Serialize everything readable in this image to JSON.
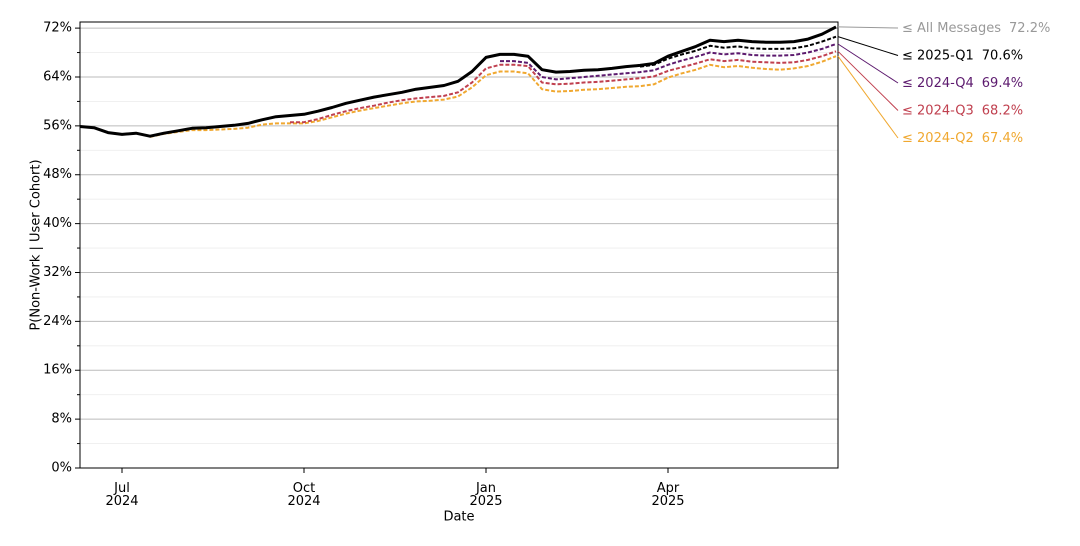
{
  "chart_data": {
    "type": "line",
    "x_label": "Date",
    "y_label": "P(Non-Work | User Cohort)",
    "categories": [
      null,
      null,
      null,
      "Jul\n2024",
      null,
      null,
      null,
      null,
      null,
      null,
      null,
      null,
      null,
      null,
      null,
      null,
      "Oct\n2024",
      null,
      null,
      null,
      null,
      null,
      null,
      null,
      null,
      null,
      null,
      null,
      null,
      "Jan\n2025",
      null,
      null,
      null,
      null,
      null,
      null,
      null,
      null,
      null,
      null,
      null,
      null,
      "Apr\n2025",
      null,
      null,
      null,
      null,
      null,
      null,
      null,
      null,
      null,
      null,
      null,
      null
    ],
    "ylim": [
      0,
      73
    ],
    "yticks": [
      {
        "value": 0,
        "label": "0%"
      },
      {
        "value": 8,
        "label": "8%"
      },
      {
        "value": 16,
        "label": "16%"
      },
      {
        "value": 24,
        "label": "24%"
      },
      {
        "value": 32,
        "label": "32%"
      },
      {
        "value": 40,
        "label": "40%"
      },
      {
        "value": 48,
        "label": "48%"
      },
      {
        "value": 56,
        "label": "56%"
      },
      {
        "value": 64,
        "label": "64%"
      },
      {
        "value": 72,
        "label": "72%"
      }
    ],
    "yminorticks": [
      4,
      12,
      20,
      28,
      36,
      44,
      52,
      60,
      68
    ],
    "grid": true,
    "series": [
      {
        "name": "≤ All Messages",
        "color": "#000000",
        "label_color": "#999999",
        "dash": false,
        "values": [
          55.9,
          55.7,
          54.9,
          54.6,
          54.8,
          54.3,
          54.8,
          55.2,
          55.6,
          55.7,
          55.9,
          56.1,
          56.4,
          57.0,
          57.5,
          57.7,
          57.9,
          58.4,
          59.0,
          59.7,
          60.2,
          60.7,
          61.1,
          61.5,
          62.0,
          62.3,
          62.6,
          63.3,
          64.9,
          67.2,
          67.7,
          67.7,
          67.4,
          65.2,
          64.8,
          64.9,
          65.1,
          65.2,
          65.4,
          65.7,
          65.9,
          66.2,
          67.4,
          68.2,
          69.0,
          70.0,
          69.8,
          70.0,
          69.8,
          69.7,
          69.7,
          69.8,
          70.2,
          71.0,
          72.2
        ],
        "value_labels": [
          null,
          null,
          null,
          null,
          null,
          null,
          null,
          null,
          null,
          null,
          null,
          null,
          null,
          null,
          null,
          null,
          null,
          null,
          null,
          null,
          null,
          null,
          null,
          null,
          null,
          null,
          null,
          null,
          null,
          null,
          null,
          null,
          null,
          null,
          null,
          null,
          null,
          null,
          null,
          null,
          null,
          null,
          null,
          null,
          null,
          null,
          null,
          null,
          null,
          null,
          null,
          null,
          null,
          null,
          "72.2%"
        ]
      },
      {
        "name": "≤ 2025-Q1",
        "color": "#000000",
        "label_color": "#000000",
        "dash": true,
        "values": [
          null,
          null,
          null,
          null,
          null,
          null,
          null,
          null,
          null,
          null,
          null,
          null,
          null,
          null,
          null,
          null,
          null,
          null,
          null,
          null,
          null,
          null,
          null,
          null,
          null,
          null,
          null,
          null,
          null,
          null,
          null,
          null,
          null,
          null,
          null,
          null,
          null,
          null,
          null,
          null,
          65.7,
          66.0,
          67.0,
          67.7,
          68.3,
          69.1,
          68.8,
          69.0,
          68.7,
          68.6,
          68.6,
          68.7,
          69.1,
          69.8,
          70.6
        ],
        "value_labels": [
          null,
          null,
          null,
          null,
          null,
          null,
          null,
          null,
          null,
          null,
          null,
          null,
          null,
          null,
          null,
          null,
          null,
          null,
          null,
          null,
          null,
          null,
          null,
          null,
          null,
          null,
          null,
          null,
          null,
          null,
          null,
          null,
          null,
          null,
          null,
          null,
          null,
          null,
          null,
          null,
          null,
          null,
          null,
          null,
          null,
          null,
          null,
          null,
          null,
          null,
          null,
          null,
          null,
          null,
          "70.6%"
        ]
      },
      {
        "name": "≤ 2024-Q4",
        "color": "#5c1a6e",
        "label_color": "#5c1a6e",
        "dash": true,
        "values": [
          null,
          null,
          null,
          null,
          null,
          null,
          null,
          null,
          null,
          null,
          null,
          null,
          null,
          null,
          null,
          null,
          null,
          null,
          null,
          null,
          null,
          null,
          null,
          null,
          null,
          null,
          null,
          null,
          null,
          null,
          66.6,
          66.6,
          66.3,
          64.0,
          63.6,
          63.8,
          64.0,
          64.2,
          64.4,
          64.6,
          64.8,
          65.1,
          66.0,
          66.7,
          67.3,
          68.0,
          67.7,
          67.9,
          67.6,
          67.5,
          67.5,
          67.6,
          68.0,
          68.6,
          69.4
        ],
        "value_labels": [
          null,
          null,
          null,
          null,
          null,
          null,
          null,
          null,
          null,
          null,
          null,
          null,
          null,
          null,
          null,
          null,
          null,
          null,
          null,
          null,
          null,
          null,
          null,
          null,
          null,
          null,
          null,
          null,
          null,
          null,
          null,
          null,
          null,
          null,
          null,
          null,
          null,
          null,
          null,
          null,
          null,
          null,
          null,
          null,
          null,
          null,
          null,
          null,
          null,
          null,
          null,
          null,
          null,
          null,
          "69.4%"
        ]
      },
      {
        "name": "≤ 2024-Q3",
        "color": "#c0404f",
        "label_color": "#c0404f",
        "dash": true,
        "values": [
          null,
          null,
          null,
          null,
          null,
          null,
          null,
          null,
          null,
          null,
          null,
          null,
          null,
          null,
          null,
          56.6,
          56.6,
          57.1,
          57.8,
          58.4,
          58.9,
          59.3,
          59.8,
          60.2,
          60.5,
          60.7,
          60.9,
          61.5,
          63.1,
          65.4,
          66.0,
          66.0,
          65.8,
          63.1,
          62.8,
          62.9,
          63.1,
          63.2,
          63.4,
          63.6,
          63.8,
          64.1,
          65.0,
          65.6,
          66.2,
          66.9,
          66.6,
          66.8,
          66.5,
          66.4,
          66.3,
          66.4,
          66.8,
          67.4,
          68.2
        ],
        "value_labels": [
          null,
          null,
          null,
          null,
          null,
          null,
          null,
          null,
          null,
          null,
          null,
          null,
          null,
          null,
          null,
          null,
          null,
          null,
          null,
          null,
          null,
          null,
          null,
          null,
          null,
          null,
          null,
          null,
          null,
          null,
          null,
          null,
          null,
          null,
          null,
          null,
          null,
          null,
          null,
          null,
          null,
          null,
          null,
          null,
          null,
          null,
          null,
          null,
          null,
          null,
          null,
          null,
          null,
          null,
          "68.2%"
        ]
      },
      {
        "name": "≤ 2024-Q2",
        "color": "#f0a830",
        "label_color": "#f0a830",
        "dash": true,
        "values": [
          null,
          null,
          null,
          null,
          null,
          54.2,
          54.7,
          55.0,
          55.3,
          55.3,
          55.4,
          55.5,
          55.7,
          56.2,
          56.4,
          56.4,
          56.4,
          56.8,
          57.4,
          58.0,
          58.5,
          58.9,
          59.3,
          59.7,
          60.0,
          60.1,
          60.3,
          60.8,
          62.3,
          64.3,
          64.9,
          64.9,
          64.6,
          62.0,
          61.6,
          61.7,
          61.9,
          62.0,
          62.2,
          62.4,
          62.5,
          62.8,
          63.9,
          64.6,
          65.2,
          66.0,
          65.6,
          65.8,
          65.5,
          65.3,
          65.2,
          65.4,
          65.8,
          66.5,
          67.4
        ],
        "value_labels": [
          null,
          null,
          null,
          null,
          null,
          null,
          null,
          null,
          null,
          null,
          null,
          null,
          null,
          null,
          null,
          null,
          null,
          null,
          null,
          null,
          null,
          null,
          null,
          null,
          null,
          null,
          null,
          null,
          null,
          null,
          null,
          null,
          null,
          null,
          null,
          null,
          null,
          null,
          null,
          null,
          null,
          null,
          null,
          null,
          null,
          null,
          null,
          null,
          null,
          null,
          null,
          null,
          null,
          null,
          "67.4%"
        ]
      }
    ]
  }
}
